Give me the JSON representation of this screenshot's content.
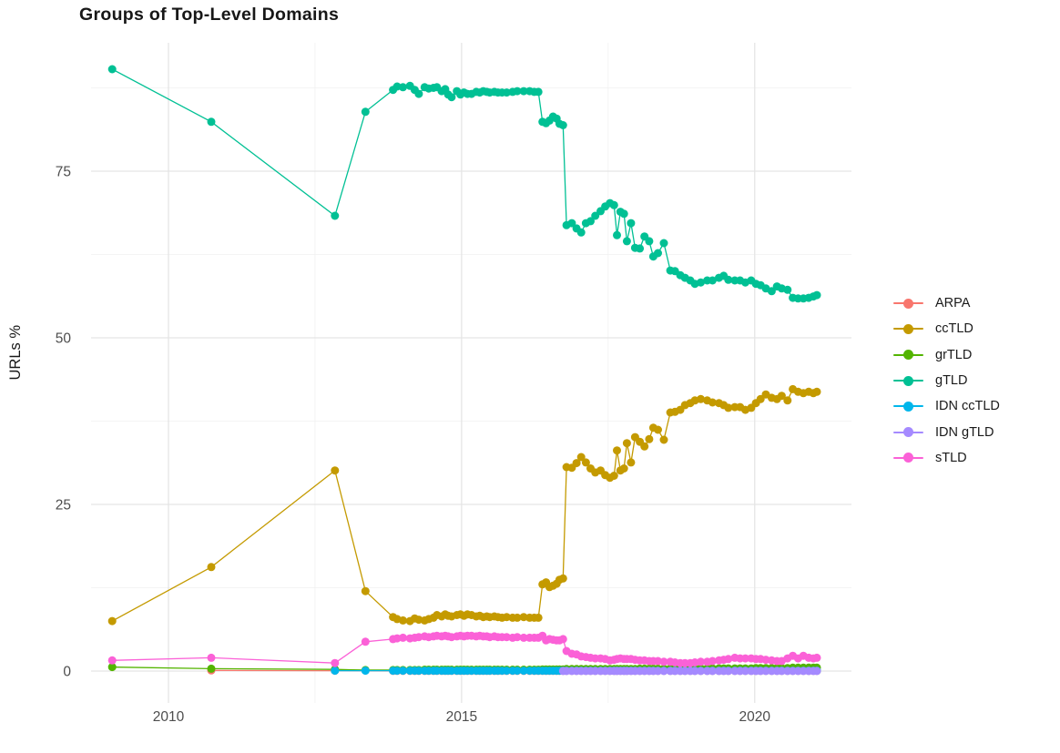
{
  "title": "Groups of Top-Level Domains",
  "axes": {
    "y_label": "URLs %",
    "y_major_ticks": [
      0,
      25,
      50,
      75
    ],
    "y_minor_ticks": [
      12.5,
      37.5,
      62.5,
      87.5
    ],
    "x_major_ticks": [
      2010,
      2015,
      2020
    ],
    "x_minor_ticks": [
      2012.5,
      2017.5
    ]
  },
  "chart_data": {
    "type": "line",
    "title": "Groups of Top-Level Domains",
    "xlabel": "",
    "ylabel": "URLs %",
    "xlim": [
      2008.68,
      2021.65
    ],
    "ylim": [
      -4.78,
      94.26
    ],
    "grid": true,
    "legend_position": "right",
    "x_dense": [
      2013.83,
      2013.9,
      2014.0,
      2014.12,
      2014.2,
      2014.27,
      2014.37,
      2014.44,
      2014.52,
      2014.58,
      2014.66,
      2014.72,
      2014.77,
      2014.83,
      2014.92,
      2014.98,
      2015.04,
      2015.1,
      2015.17,
      2015.25,
      2015.31,
      2015.37,
      2015.43,
      2015.48,
      2015.56,
      2015.62,
      2015.69,
      2015.77,
      2015.87,
      2015.95,
      2016.06,
      2016.16,
      2016.24,
      2016.31,
      2016.38,
      2016.44,
      2016.5,
      2016.56,
      2016.62,
      2016.67,
      2016.73,
      2016.79,
      2016.88,
      2016.96,
      2017.04,
      2017.12,
      2017.2,
      2017.28,
      2017.37,
      2017.45,
      2017.53,
      2017.6,
      2017.65,
      2017.71,
      2017.77,
      2017.82,
      2017.89,
      2017.96,
      2018.04,
      2018.12,
      2018.2,
      2018.27,
      2018.35,
      2018.45,
      2018.56,
      2018.64,
      2018.73,
      2018.81,
      2018.9,
      2018.98,
      2019.08,
      2019.19,
      2019.28,
      2019.39,
      2019.47,
      2019.55,
      2019.66,
      2019.75,
      2019.84,
      2019.94,
      2020.02,
      2020.1,
      2020.19,
      2020.29,
      2020.38,
      2020.46,
      2020.56,
      2020.65,
      2020.74,
      2020.83,
      2020.92,
      2021.0,
      2021.06
    ],
    "series": [
      {
        "name": "ARPA",
        "color": "#F8766D",
        "prefix": [
          [
            2010.73,
            0.1
          ],
          [
            2012.84,
            0.05
          ]
        ],
        "y_const": 0.03
      },
      {
        "name": "ccTLD",
        "color": "#C49A00",
        "prefix": [
          [
            2009.04,
            7.5
          ],
          [
            2010.73,
            15.6
          ],
          [
            2012.84,
            30.1
          ],
          [
            2013.36,
            12.0
          ]
        ],
        "y_dense": [
          8.1,
          7.8,
          7.6,
          7.5,
          7.9,
          7.7,
          7.6,
          7.8,
          8.0,
          8.4,
          8.2,
          8.5,
          8.3,
          8.2,
          8.4,
          8.5,
          8.3,
          8.5,
          8.4,
          8.2,
          8.3,
          8.1,
          8.2,
          8.1,
          8.2,
          8.1,
          8.0,
          8.1,
          8.0,
          8.0,
          8.1,
          8.0,
          8.0,
          8.0,
          13.0,
          13.3,
          12.6,
          12.8,
          13.1,
          13.7,
          13.9,
          30.6,
          30.5,
          31.2,
          32.1,
          31.3,
          30.4,
          29.8,
          30.1,
          29.4,
          29.0,
          29.3,
          33.1,
          30.1,
          30.4,
          34.2,
          31.3,
          35.1,
          34.4,
          33.7,
          34.8,
          36.5,
          36.2,
          34.7,
          38.8,
          38.9,
          39.2,
          39.9,
          40.2,
          40.6,
          40.8,
          40.6,
          40.3,
          40.2,
          39.9,
          39.5,
          39.6,
          39.6,
          39.2,
          39.5,
          40.2,
          40.8,
          41.5,
          41.0,
          40.8,
          41.3,
          40.6,
          42.3,
          41.9,
          41.7,
          41.9,
          41.7,
          41.9
        ]
      },
      {
        "name": "grTLD",
        "color": "#53B400",
        "prefix": [
          [
            2009.04,
            0.6
          ],
          [
            2010.73,
            0.35
          ],
          [
            2012.84,
            0.25
          ],
          [
            2013.36,
            0.15
          ]
        ],
        "y_dense": [
          0.15,
          0.15,
          0.15,
          0.15,
          0.15,
          0.15,
          0.2,
          0.2,
          0.2,
          0.2,
          0.2,
          0.2,
          0.2,
          0.2,
          0.2,
          0.2,
          0.2,
          0.2,
          0.2,
          0.2,
          0.2,
          0.2,
          0.2,
          0.2,
          0.2,
          0.2,
          0.2,
          0.2,
          0.2,
          0.2,
          0.2,
          0.2,
          0.2,
          0.2,
          0.25,
          0.25,
          0.25,
          0.25,
          0.25,
          0.25,
          0.25,
          0.3,
          0.3,
          0.3,
          0.3,
          0.3,
          0.3,
          0.3,
          0.3,
          0.3,
          0.3,
          0.3,
          0.3,
          0.3,
          0.3,
          0.3,
          0.3,
          0.3,
          0.35,
          0.35,
          0.35,
          0.35,
          0.35,
          0.35,
          0.4,
          0.4,
          0.4,
          0.4,
          0.4,
          0.4,
          0.4,
          0.4,
          0.4,
          0.4,
          0.4,
          0.4,
          0.4,
          0.4,
          0.4,
          0.4,
          0.45,
          0.45,
          0.45,
          0.45,
          0.45,
          0.45,
          0.45,
          0.5,
          0.5,
          0.5,
          0.5,
          0.5,
          0.5
        ]
      },
      {
        "name": "gTLD",
        "color": "#00C094",
        "prefix": [
          [
            2009.04,
            90.3
          ],
          [
            2010.73,
            82.4
          ],
          [
            2012.84,
            68.3
          ],
          [
            2013.36,
            83.9
          ]
        ],
        "y_dense": [
          87.2,
          87.7,
          87.6,
          87.8,
          87.2,
          86.6,
          87.6,
          87.4,
          87.5,
          87.6,
          87.0,
          87.3,
          86.5,
          86.1,
          87.0,
          86.5,
          86.8,
          86.6,
          86.6,
          86.9,
          86.8,
          87.0,
          86.9,
          86.8,
          86.9,
          86.8,
          86.8,
          86.8,
          86.9,
          87.0,
          87.0,
          87.0,
          86.9,
          86.9,
          82.4,
          82.2,
          82.6,
          83.2,
          82.9,
          82.1,
          81.9,
          66.9,
          67.2,
          66.4,
          65.8,
          67.2,
          67.5,
          68.3,
          69.0,
          69.7,
          70.2,
          69.9,
          65.4,
          68.9,
          68.6,
          64.5,
          67.2,
          63.5,
          63.4,
          65.2,
          64.5,
          62.2,
          62.7,
          64.2,
          60.1,
          60.0,
          59.4,
          59.0,
          58.6,
          58.1,
          58.3,
          58.6,
          58.6,
          59.0,
          59.3,
          58.7,
          58.6,
          58.6,
          58.3,
          58.6,
          58.1,
          57.9,
          57.4,
          57.0,
          57.7,
          57.4,
          57.2,
          56.0,
          55.9,
          55.9,
          56.0,
          56.2,
          56.4
        ]
      },
      {
        "name": "IDN ccTLD",
        "color": "#00B6EB",
        "prefix": [
          [
            2012.84,
            0.05
          ],
          [
            2013.36,
            0.05
          ]
        ],
        "y_const": 0.05
      },
      {
        "name": "IDN gTLD",
        "color": "#A58AFF",
        "dense_start": 40,
        "y_const": 0.02
      },
      {
        "name": "sTLD",
        "color": "#FB61D7",
        "prefix": [
          [
            2009.04,
            1.6
          ],
          [
            2010.73,
            2.0
          ],
          [
            2012.84,
            1.2
          ],
          [
            2013.36,
            4.4
          ]
        ],
        "y_dense": [
          4.8,
          4.9,
          5.0,
          4.9,
          5.0,
          5.1,
          5.2,
          5.1,
          5.2,
          5.3,
          5.2,
          5.3,
          5.2,
          5.1,
          5.2,
          5.3,
          5.2,
          5.3,
          5.3,
          5.2,
          5.3,
          5.2,
          5.2,
          5.1,
          5.2,
          5.1,
          5.1,
          5.1,
          5.0,
          5.1,
          5.0,
          5.0,
          5.0,
          5.0,
          5.3,
          4.6,
          4.8,
          4.7,
          4.6,
          4.6,
          4.8,
          3.0,
          2.6,
          2.5,
          2.2,
          2.1,
          2.0,
          1.9,
          1.9,
          1.8,
          1.6,
          1.7,
          1.8,
          1.9,
          1.8,
          1.8,
          1.8,
          1.7,
          1.6,
          1.6,
          1.5,
          1.5,
          1.5,
          1.4,
          1.4,
          1.3,
          1.2,
          1.2,
          1.2,
          1.3,
          1.4,
          1.4,
          1.5,
          1.6,
          1.7,
          1.8,
          2.0,
          1.9,
          1.9,
          1.9,
          1.8,
          1.8,
          1.7,
          1.6,
          1.5,
          1.5,
          1.9,
          2.3,
          1.9,
          2.3,
          2.0,
          1.9,
          2.0
        ]
      }
    ]
  },
  "legend": {
    "entries": [
      {
        "label": "ARPA",
        "color": "#F8766D"
      },
      {
        "label": "ccTLD",
        "color": "#C49A00"
      },
      {
        "label": "grTLD",
        "color": "#53B400"
      },
      {
        "label": "gTLD",
        "color": "#00C094"
      },
      {
        "label": "IDN ccTLD",
        "color": "#00B6EB"
      },
      {
        "label": "IDN gTLD",
        "color": "#A58AFF"
      },
      {
        "label": "sTLD",
        "color": "#FB61D7"
      }
    ]
  }
}
